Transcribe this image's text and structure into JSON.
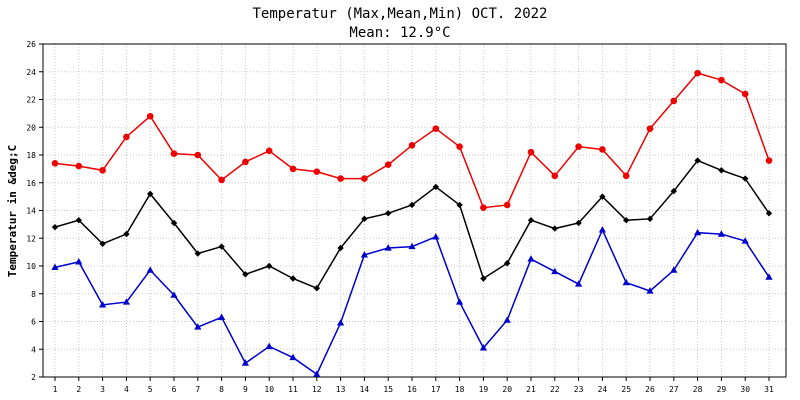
{
  "chart_data": {
    "type": "line",
    "title": "Temperatur (Max,Mean,Min) OCT. 2022",
    "subtitle": "Mean: 12.9°C",
    "xlabel": "",
    "ylabel": "Temperatur in &deg;C",
    "ylim": [
      2,
      26
    ],
    "yticks": [
      2,
      4,
      6,
      8,
      10,
      12,
      14,
      16,
      18,
      20,
      22,
      24,
      26
    ],
    "grid": true,
    "categories": [
      "1",
      "2",
      "3",
      "4",
      "5",
      "6",
      "7",
      "8",
      "9",
      "10",
      "11",
      "12",
      "13",
      "14",
      "15",
      "16",
      "17",
      "18",
      "19",
      "20",
      "21",
      "22",
      "23",
      "24",
      "25",
      "26",
      "27",
      "28",
      "29",
      "30",
      "31"
    ],
    "series": [
      {
        "color": "#ee0000",
        "marker": "circle",
        "values": [
          17.4,
          17.2,
          16.9,
          19.3,
          20.8,
          18.1,
          18.0,
          16.2,
          17.5,
          18.3,
          17.0,
          16.8,
          16.3,
          16.3,
          17.3,
          18.7,
          19.9,
          18.6,
          14.2,
          14.4,
          18.2,
          16.5,
          18.6,
          18.4,
          16.5,
          19.9,
          21.9,
          23.9,
          23.4,
          22.4,
          17.6
        ]
      },
      {
        "color": "#000000",
        "marker": "diamond",
        "values": [
          12.8,
          13.3,
          11.6,
          12.3,
          15.2,
          13.1,
          10.9,
          11.4,
          9.4,
          10.0,
          9.1,
          8.4,
          11.3,
          13.4,
          13.8,
          14.4,
          15.7,
          14.4,
          9.1,
          10.2,
          13.3,
          12.7,
          13.1,
          15.0,
          13.3,
          13.4,
          15.4,
          17.6,
          16.9,
          16.3,
          13.8
        ]
      },
      {
        "color": "#0000cc",
        "marker": "triangle",
        "values": [
          9.9,
          10.3,
          7.2,
          7.4,
          9.7,
          7.9,
          5.6,
          6.3,
          3.0,
          4.2,
          3.4,
          2.2,
          5.9,
          10.8,
          11.3,
          11.4,
          12.1,
          7.4,
          4.1,
          6.1,
          10.5,
          9.6,
          8.7,
          12.6,
          8.8,
          8.2,
          9.7,
          12.4,
          12.3,
          11.8,
          9.2
        ]
      }
    ]
  }
}
